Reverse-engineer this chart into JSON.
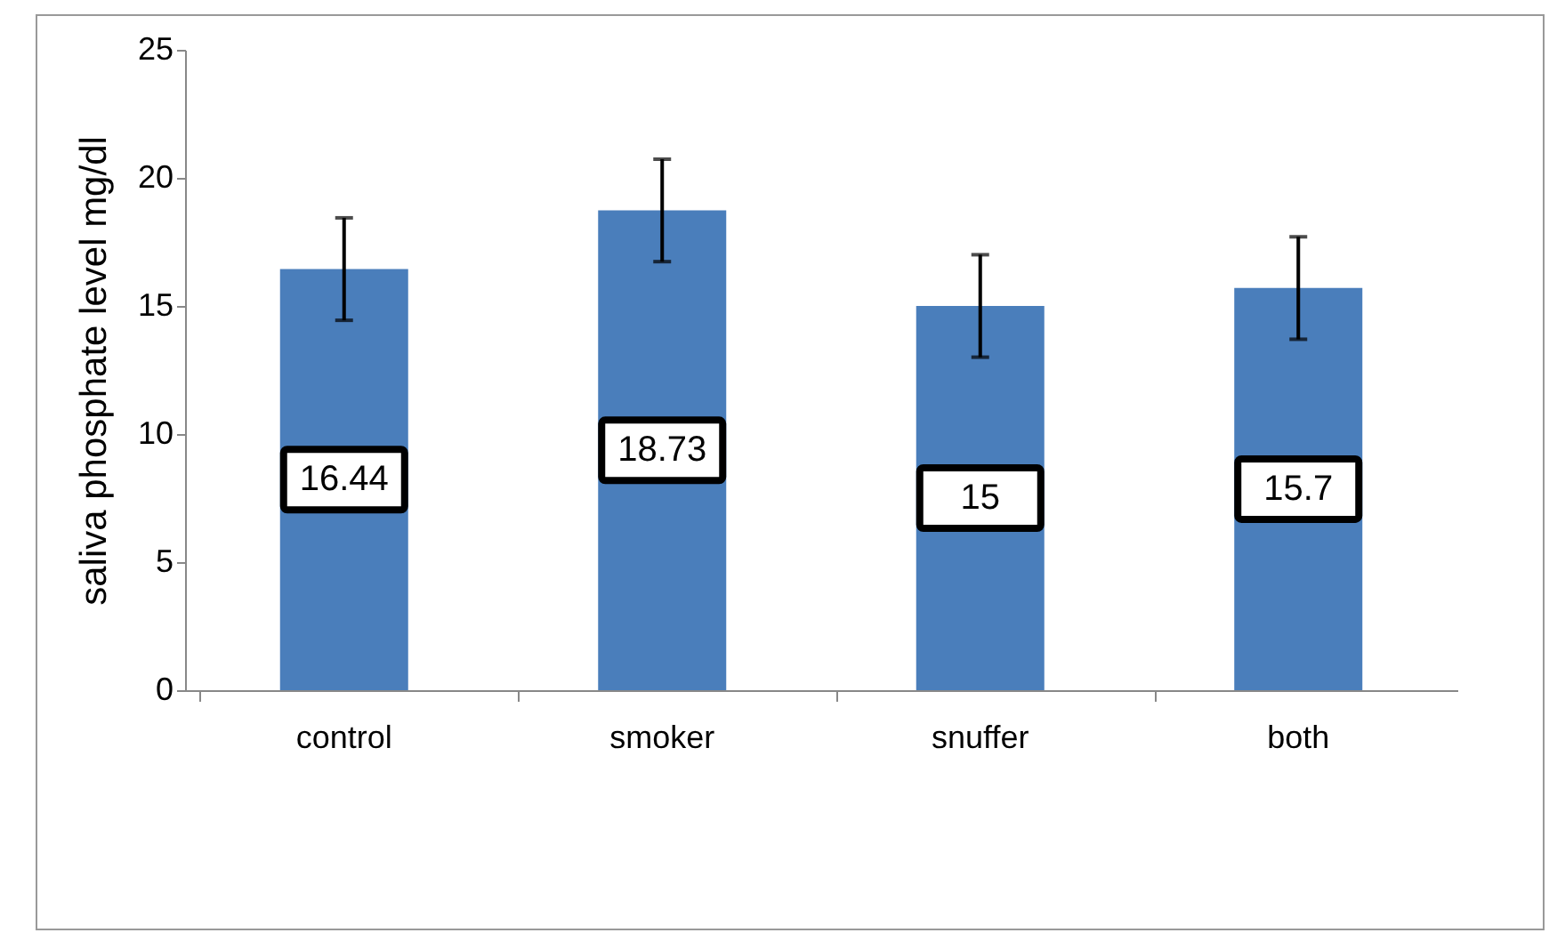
{
  "chart_data": {
    "type": "bar",
    "ylabel": "saliva phosphate level mg/dl",
    "categories": [
      "control",
      "smoker",
      "snuffer",
      "both"
    ],
    "values": [
      16.44,
      18.73,
      15,
      15.7
    ],
    "errors": [
      2,
      2,
      2,
      2
    ],
    "color": "#4a7ebb",
    "ylim": [
      0,
      25
    ],
    "yticks": [
      0,
      5,
      10,
      15,
      20,
      25
    ],
    "data_labels": true,
    "grid": false
  }
}
